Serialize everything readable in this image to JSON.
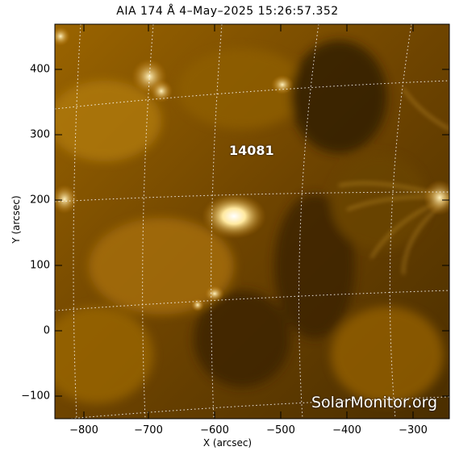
{
  "title": "AIA 174 Å  4–May–2025  15:26:57.352",
  "axes": {
    "xlabel": "X (arcsec)",
    "ylabel": "Y (arcsec)",
    "xticks": [
      "−800",
      "−700",
      "−600",
      "−500",
      "−400",
      "−300"
    ],
    "yticks": [
      "400",
      "300",
      "200",
      "100",
      "0",
      "−100"
    ]
  },
  "active_region": "14081",
  "credit": "SolarMonitor.org",
  "colors": {
    "sun_dark": "#3a2400",
    "sun_mid": "#8a5a00",
    "sun_bright": "#f0c060",
    "grid": "#ffffff"
  }
}
